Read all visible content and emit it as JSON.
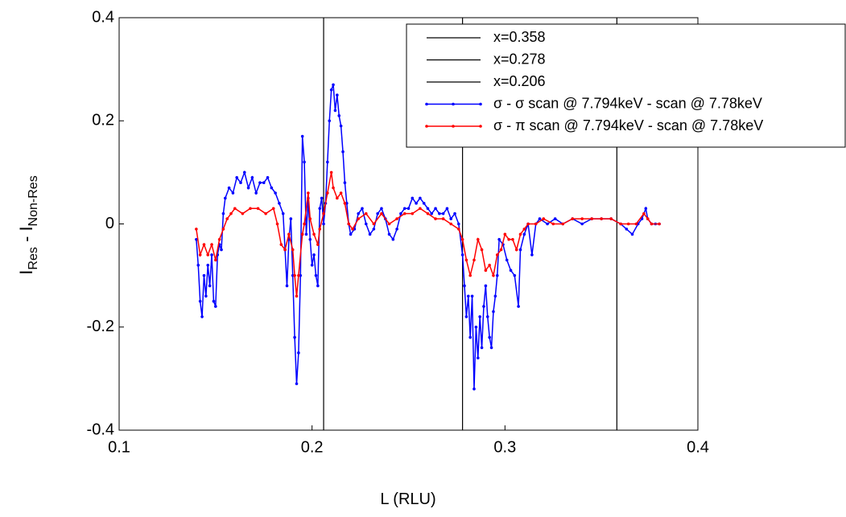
{
  "chart_data": {
    "type": "line",
    "xlabel": "L (RLU)",
    "ylabel": [
      "I",
      "Res",
      " - I",
      "Non-Res"
    ],
    "xlim": [
      0.1,
      0.4
    ],
    "ylim": [
      -0.4,
      0.4
    ],
    "xticks": [
      0.1,
      0.2,
      0.3,
      0.4
    ],
    "yticks": [
      -0.4,
      -0.2,
      0,
      0.2,
      0.4
    ],
    "vlines": [
      {
        "name": "x=0.358",
        "value": 0.358,
        "color": "#000000"
      },
      {
        "name": "x=0.278",
        "value": 0.278,
        "color": "#000000"
      },
      {
        "name": "x=0.206",
        "value": 0.206,
        "color": "#000000"
      }
    ],
    "series": [
      {
        "name": "σ - σ scan @ 7.794keV - scan @ 7.78keV",
        "color": "#0000ff",
        "x": [
          0.14,
          0.141,
          0.142,
          0.143,
          0.144,
          0.145,
          0.146,
          0.147,
          0.148,
          0.149,
          0.15,
          0.151,
          0.152,
          0.153,
          0.154,
          0.155,
          0.157,
          0.159,
          0.161,
          0.163,
          0.165,
          0.167,
          0.169,
          0.171,
          0.173,
          0.175,
          0.177,
          0.179,
          0.181,
          0.183,
          0.185,
          0.186,
          0.187,
          0.188,
          0.189,
          0.19,
          0.191,
          0.192,
          0.193,
          0.194,
          0.195,
          0.196,
          0.197,
          0.198,
          0.199,
          0.2,
          0.201,
          0.202,
          0.203,
          0.204,
          0.205,
          0.206,
          0.207,
          0.208,
          0.209,
          0.21,
          0.211,
          0.212,
          0.213,
          0.214,
          0.215,
          0.216,
          0.217,
          0.218,
          0.219,
          0.22,
          0.222,
          0.224,
          0.226,
          0.228,
          0.23,
          0.232,
          0.234,
          0.236,
          0.238,
          0.24,
          0.242,
          0.244,
          0.246,
          0.248,
          0.25,
          0.252,
          0.254,
          0.256,
          0.258,
          0.26,
          0.262,
          0.264,
          0.266,
          0.268,
          0.27,
          0.272,
          0.274,
          0.276,
          0.278,
          0.279,
          0.28,
          0.281,
          0.282,
          0.283,
          0.284,
          0.285,
          0.286,
          0.287,
          0.288,
          0.289,
          0.29,
          0.291,
          0.292,
          0.293,
          0.294,
          0.295,
          0.296,
          0.297,
          0.299,
          0.301,
          0.303,
          0.305,
          0.307,
          0.308,
          0.31,
          0.312,
          0.314,
          0.316,
          0.318,
          0.322,
          0.326,
          0.33,
          0.335,
          0.34,
          0.345,
          0.35,
          0.355,
          0.36,
          0.363,
          0.366,
          0.369,
          0.371,
          0.373,
          0.374,
          0.376,
          0.378,
          0.38
        ],
        "values": [
          -0.03,
          -0.08,
          -0.15,
          -0.18,
          -0.1,
          -0.14,
          -0.08,
          -0.12,
          -0.06,
          -0.15,
          -0.16,
          -0.06,
          -0.04,
          -0.05,
          0.02,
          0.05,
          0.07,
          0.06,
          0.09,
          0.08,
          0.1,
          0.07,
          0.09,
          0.06,
          0.08,
          0.08,
          0.09,
          0.07,
          0.06,
          0.04,
          0.02,
          -0.05,
          -0.12,
          -0.03,
          0.01,
          -0.1,
          -0.22,
          -0.31,
          -0.25,
          -0.1,
          0.17,
          0.12,
          -0.02,
          0.05,
          -0.03,
          -0.08,
          -0.06,
          -0.1,
          -0.12,
          0.03,
          0.05,
          0.0,
          0.04,
          0.12,
          0.2,
          0.26,
          0.27,
          0.22,
          0.25,
          0.21,
          0.19,
          0.14,
          0.08,
          0.04,
          0.0,
          -0.02,
          -0.01,
          0.02,
          0.03,
          0.0,
          -0.02,
          -0.01,
          0.02,
          0.03,
          0.01,
          -0.02,
          -0.03,
          -0.01,
          0.02,
          0.03,
          0.03,
          0.05,
          0.04,
          0.05,
          0.04,
          0.03,
          0.02,
          0.03,
          0.02,
          0.02,
          0.03,
          0.01,
          0.02,
          0.0,
          -0.06,
          -0.12,
          -0.18,
          -0.14,
          -0.22,
          -0.14,
          -0.32,
          -0.2,
          -0.26,
          -0.18,
          -0.24,
          -0.16,
          -0.12,
          -0.18,
          -0.22,
          -0.24,
          -0.17,
          -0.14,
          -0.1,
          -0.03,
          -0.04,
          -0.07,
          -0.09,
          -0.1,
          -0.16,
          -0.05,
          -0.02,
          0.0,
          -0.06,
          0.0,
          0.01,
          0.0,
          0.01,
          0.0,
          0.01,
          0.0,
          0.01,
          0.01,
          0.01,
          0.0,
          -0.01,
          -0.02,
          0.0,
          0.01,
          0.03,
          0.01,
          0.0,
          0.0,
          0.0
        ]
      },
      {
        "name": "σ - π scan @ 7.794keV - scan @ 7.78keV",
        "color": "#ff0000",
        "x": [
          0.14,
          0.142,
          0.144,
          0.146,
          0.148,
          0.15,
          0.152,
          0.154,
          0.156,
          0.158,
          0.16,
          0.164,
          0.168,
          0.172,
          0.176,
          0.18,
          0.182,
          0.184,
          0.186,
          0.188,
          0.19,
          0.191,
          0.192,
          0.193,
          0.195,
          0.196,
          0.198,
          0.199,
          0.201,
          0.203,
          0.204,
          0.206,
          0.208,
          0.21,
          0.211,
          0.213,
          0.215,
          0.217,
          0.219,
          0.221,
          0.224,
          0.228,
          0.232,
          0.236,
          0.24,
          0.244,
          0.248,
          0.252,
          0.256,
          0.26,
          0.264,
          0.268,
          0.272,
          0.276,
          0.278,
          0.28,
          0.282,
          0.284,
          0.286,
          0.288,
          0.29,
          0.292,
          0.294,
          0.296,
          0.298,
          0.3,
          0.302,
          0.304,
          0.306,
          0.308,
          0.31,
          0.312,
          0.316,
          0.32,
          0.325,
          0.33,
          0.335,
          0.34,
          0.345,
          0.35,
          0.355,
          0.36,
          0.364,
          0.368,
          0.372,
          0.374,
          0.376,
          0.38
        ],
        "values": [
          -0.01,
          -0.06,
          -0.04,
          -0.06,
          -0.04,
          -0.07,
          -0.03,
          -0.01,
          0.01,
          0.02,
          0.03,
          0.02,
          0.03,
          0.03,
          0.02,
          0.03,
          0.0,
          -0.04,
          -0.05,
          -0.02,
          -0.05,
          -0.1,
          -0.14,
          -0.1,
          -0.02,
          0.0,
          0.06,
          0.01,
          -0.02,
          -0.04,
          -0.01,
          0.02,
          0.06,
          0.1,
          0.07,
          0.05,
          0.06,
          0.04,
          0.0,
          -0.01,
          0.01,
          0.02,
          0.0,
          0.02,
          0.0,
          0.01,
          0.02,
          0.02,
          0.03,
          0.02,
          0.01,
          0.01,
          0.0,
          -0.01,
          -0.03,
          -0.07,
          -0.1,
          -0.07,
          -0.03,
          -0.05,
          -0.09,
          -0.08,
          -0.1,
          -0.06,
          -0.05,
          -0.02,
          -0.03,
          -0.03,
          -0.05,
          -0.02,
          -0.01,
          0.0,
          0.0,
          0.01,
          0.0,
          0.0,
          0.01,
          0.01,
          0.01,
          0.01,
          0.01,
          0.0,
          0.0,
          0.0,
          0.02,
          0.01,
          0.0,
          0.0
        ]
      }
    ]
  }
}
